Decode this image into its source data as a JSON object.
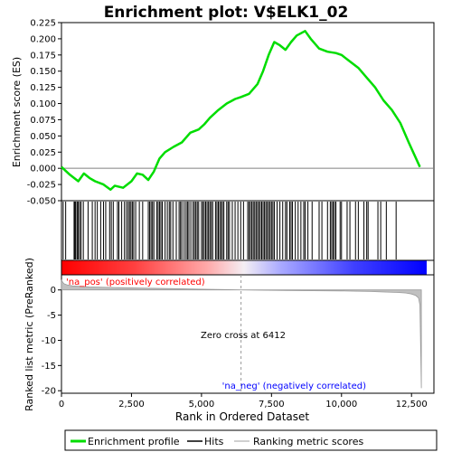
{
  "chart_data": {
    "type": "line",
    "title": "Enrichment plot: V$ELK1_02",
    "x_label": "Rank in Ordered Dataset",
    "x_ticks": [
      0,
      2500,
      5000,
      7500,
      10000,
      12500
    ],
    "x_tick_labels": [
      "0",
      "2,500",
      "5,000",
      "7,500",
      "10,000",
      "12,500"
    ],
    "xlim": [
      0,
      13300
    ],
    "top_panel": {
      "ylabel": "Enrichment score (ES)",
      "ylim": [
        -0.05,
        0.225
      ],
      "yticks": [
        -0.05,
        -0.025,
        0.0,
        0.025,
        0.05,
        0.075,
        0.1,
        0.125,
        0.15,
        0.175,
        0.2,
        0.225
      ],
      "ytick_labels": [
        "-0.050",
        "-0.025",
        "0.000",
        "0.025",
        "0.050",
        "0.075",
        "0.100",
        "0.125",
        "0.150",
        "0.175",
        "0.200",
        "0.225"
      ],
      "series": [
        {
          "name": "Enrichment profile",
          "color": "#00dd00",
          "x": [
            0,
            300,
            600,
            800,
            1000,
            1200,
            1500,
            1750,
            1900,
            2200,
            2500,
            2700,
            2900,
            3100,
            3300,
            3500,
            3700,
            4000,
            4300,
            4600,
            4900,
            5100,
            5300,
            5600,
            5900,
            6200,
            6400,
            6700,
            7000,
            7200,
            7400,
            7600,
            7800,
            8000,
            8200,
            8400,
            8700,
            8900,
            9200,
            9500,
            9800,
            10000,
            10300,
            10600,
            10900,
            11200,
            11500,
            11800,
            12100,
            12400,
            12800
          ],
          "y": [
            0.002,
            -0.01,
            -0.02,
            -0.008,
            -0.015,
            -0.02,
            -0.025,
            -0.033,
            -0.027,
            -0.03,
            -0.02,
            -0.008,
            -0.01,
            -0.018,
            -0.005,
            0.015,
            0.025,
            0.033,
            0.04,
            0.055,
            0.06,
            0.068,
            0.078,
            0.09,
            0.1,
            0.107,
            0.11,
            0.115,
            0.13,
            0.15,
            0.175,
            0.195,
            0.19,
            0.183,
            0.195,
            0.205,
            0.212,
            0.2,
            0.185,
            0.18,
            0.178,
            0.175,
            0.165,
            0.155,
            0.14,
            0.125,
            0.105,
            0.09,
            0.07,
            0.04,
            0.002
          ]
        }
      ],
      "zero_line_color": "#808080"
    },
    "hits_panel": {
      "legend_name": "Hits",
      "color": "#000000",
      "positions": [
        60,
        150,
        450,
        480,
        510,
        560,
        600,
        650,
        700,
        780,
        950,
        1100,
        1200,
        1280,
        1400,
        1500,
        1580,
        1720,
        1780,
        1850,
        2000,
        2050,
        2150,
        2250,
        2320,
        2380,
        2430,
        2480,
        2530,
        2580,
        2650,
        2780,
        2900,
        3100,
        3150,
        3200,
        3250,
        3300,
        3400,
        3450,
        3500,
        3550,
        3600,
        3700,
        3780,
        3850,
        3900,
        3980,
        4100,
        4200,
        4250,
        4300,
        4380,
        4450,
        4500,
        4550,
        4620,
        4700,
        4750,
        4800,
        4850,
        4900,
        5000,
        5050,
        5100,
        5150,
        5200,
        5250,
        5300,
        5350,
        5400,
        5500,
        5550,
        5600,
        5650,
        5700,
        5750,
        5800,
        5900,
        5950,
        6000,
        6100,
        6200,
        6300,
        6400,
        6500,
        6650,
        6700,
        6750,
        6800,
        6850,
        6900,
        6950,
        7000,
        7050,
        7100,
        7150,
        7200,
        7250,
        7300,
        7350,
        7400,
        7450,
        7500,
        7550,
        7600,
        7700,
        7800,
        7900,
        8000,
        8050,
        8150,
        8200,
        8250,
        8350,
        8450,
        8550,
        8650,
        8700,
        8800,
        8950,
        9200,
        9300,
        9500,
        9600,
        9650,
        9700,
        9750,
        9800,
        9950,
        10000,
        10200,
        10300,
        10500,
        10600,
        10800,
        10900,
        10950,
        11300,
        11400,
        11600,
        11950
      ]
    },
    "rank_panel": {
      "ylabel": "Ranked list metric (PreRanked)",
      "ylim": [
        -20.5,
        3.0
      ],
      "yticks": [
        0,
        -5,
        -10,
        -15,
        -20
      ],
      "ytick_labels": [
        "0",
        "-5",
        "-10",
        "-15",
        "-20"
      ],
      "legend_name": "Ranking metric scores",
      "color": "#c0c0c0",
      "x": [
        0,
        50,
        100,
        200,
        400,
        700,
        1000,
        2000,
        3000,
        4000,
        5000,
        6000,
        6412,
        7000,
        8000,
        9000,
        10000,
        10500,
        11000,
        11500,
        12000,
        12300,
        12500,
        12650,
        12750,
        12800,
        12850
      ],
      "y": [
        2.0,
        1.5,
        1.2,
        1.0,
        0.8,
        0.7,
        0.6,
        0.45,
        0.35,
        0.25,
        0.15,
        0.05,
        0.0,
        -0.05,
        -0.1,
        -0.15,
        -0.2,
        -0.25,
        -0.3,
        -0.4,
        -0.5,
        -0.6,
        -0.8,
        -1.1,
        -1.6,
        -3.0,
        -19.5
      ],
      "zero_cross_rank": 6412,
      "zero_cross_label": "Zero cross at 6412",
      "pos_label": "'na_pos' (positively correlated)",
      "neg_label": "'na_neg' (negatively correlated)",
      "pos_label_color": "#ff0000",
      "neg_label_color": "#0000ff"
    },
    "legend": [
      "Enrichment profile",
      "Hits",
      "Ranking metric scores"
    ]
  }
}
